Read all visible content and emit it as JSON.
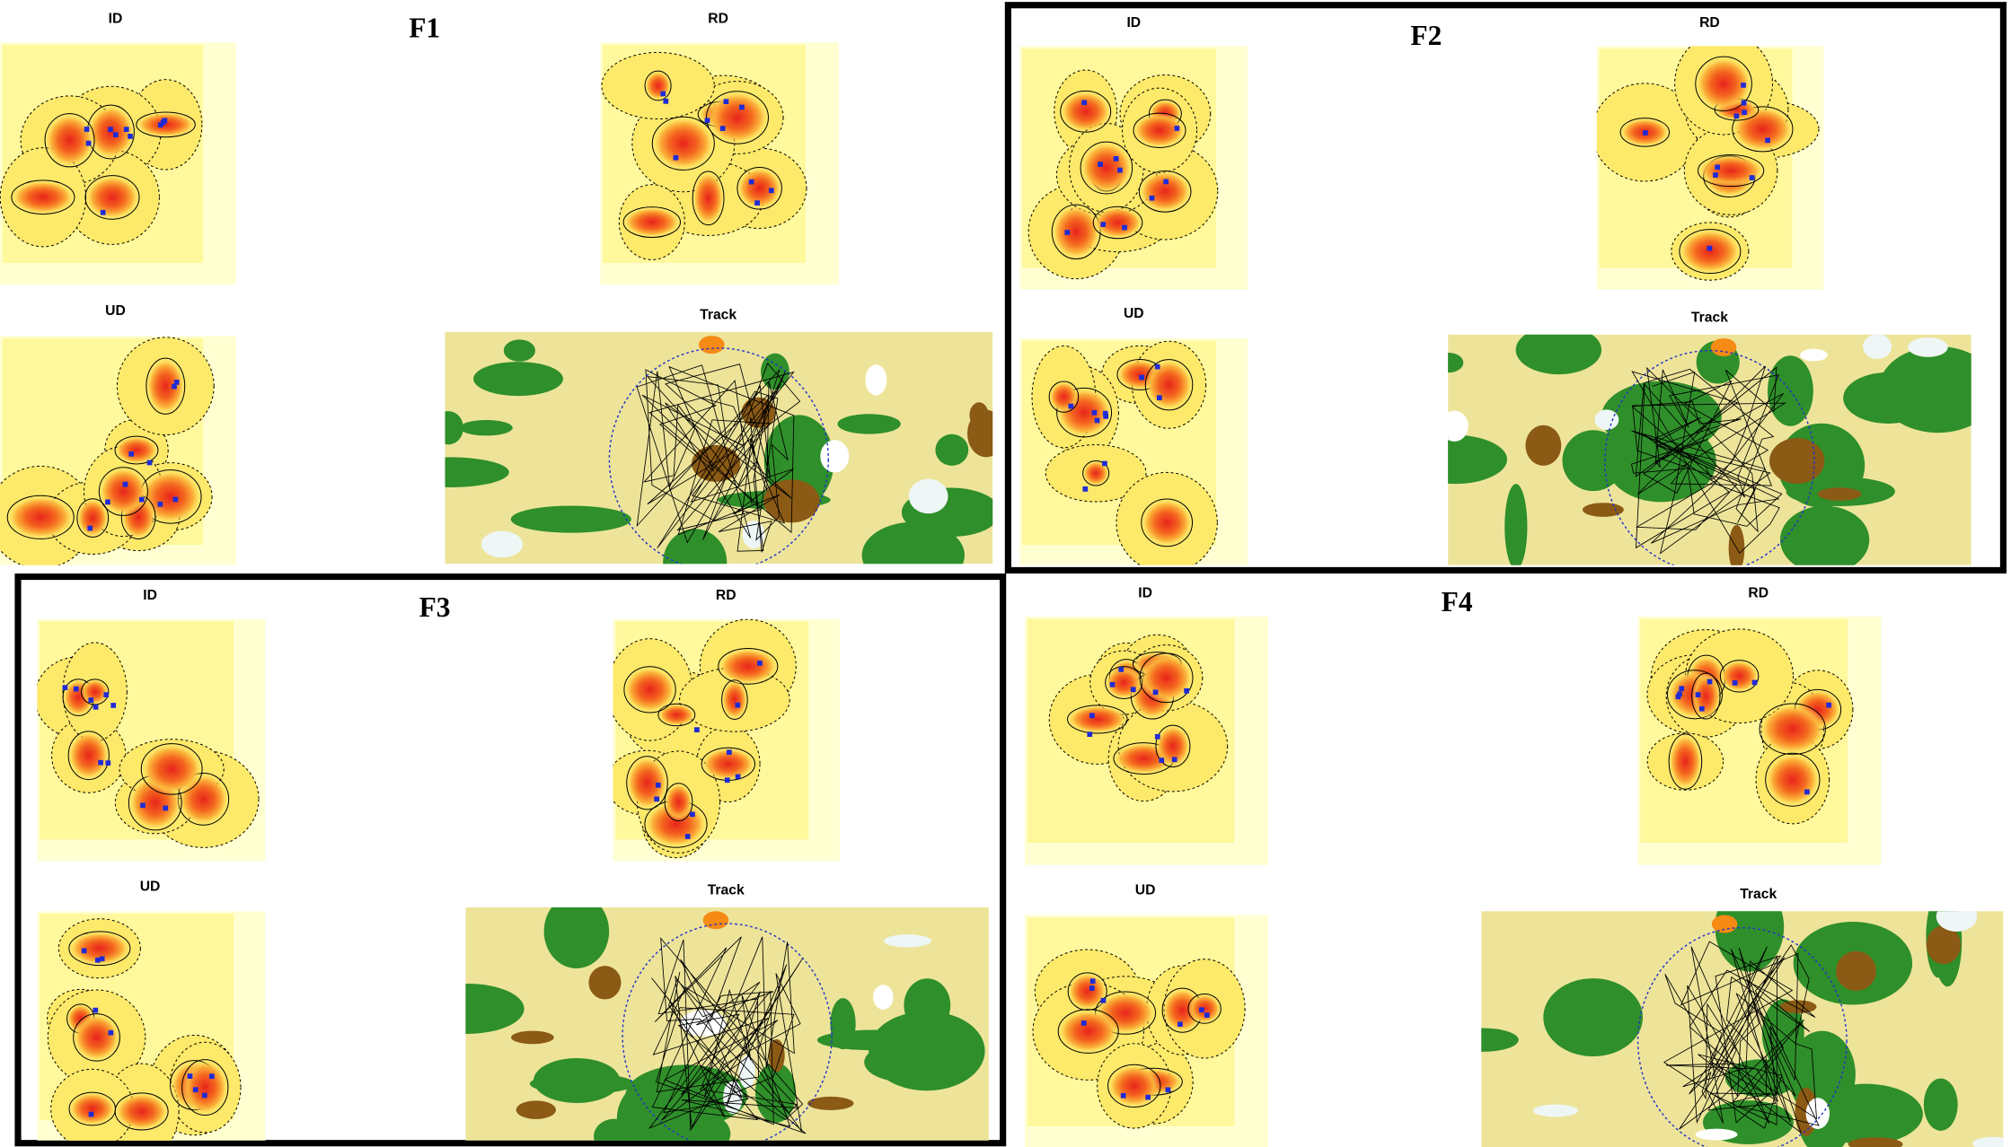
{
  "panels": [
    {
      "title": "F1",
      "maps": [
        "ID",
        "RD",
        "UD",
        "Track"
      ]
    },
    {
      "title": "F2",
      "maps": [
        "ID",
        "RD",
        "UD",
        "Track"
      ]
    },
    {
      "title": "F3",
      "maps": [
        "ID",
        "RD",
        "UD",
        "Track"
      ]
    },
    {
      "title": "F4",
      "maps": [
        "ID",
        "RD",
        "UD",
        "Track"
      ]
    }
  ]
}
